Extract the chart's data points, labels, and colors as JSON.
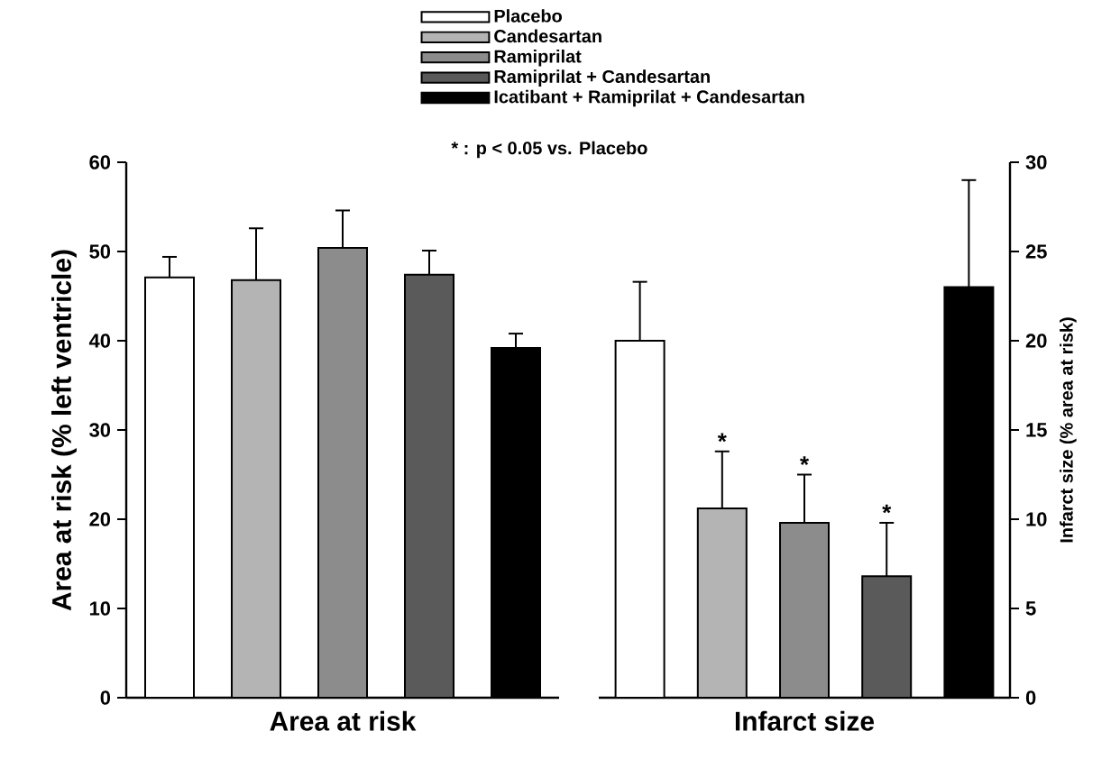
{
  "chart_data": [
    {
      "type": "bar",
      "categories": [
        null,
        null,
        null,
        null,
        null
      ],
      "xlabel": "Area at risk",
      "ylabel": "Area at risk (% left ventricle)",
      "ylim": [
        0,
        60
      ],
      "yticks": [
        0,
        10,
        20,
        30,
        40,
        50,
        60
      ],
      "legend": "top",
      "annotations": [
        "* : p < 0.05 vs. Placebo"
      ],
      "series": [
        {
          "name": "Placebo",
          "color": "#ffffff",
          "values": [
            47.1,
            null,
            null,
            null,
            null
          ],
          "errors": [
            2.3,
            null,
            null,
            null,
            null
          ]
        },
        {
          "name": "Candesartan",
          "color": "#b4b4b4",
          "values": [
            null,
            46.8,
            null,
            null,
            null
          ],
          "errors": [
            null,
            5.8,
            null,
            null,
            null
          ]
        },
        {
          "name": "Ramiprilat",
          "color": "#8c8c8c",
          "values": [
            null,
            null,
            50.4,
            null,
            null
          ],
          "errors": [
            null,
            null,
            4.2,
            null,
            null
          ]
        },
        {
          "name": "Ramiprilat + Candesartan",
          "color": "#5a5a5a",
          "values": [
            null,
            null,
            null,
            47.4,
            null
          ],
          "errors": [
            null,
            null,
            null,
            2.7,
            null
          ]
        },
        {
          "name": "Icatibant + Ramiprilat + Candesartan",
          "color": "#000000",
          "values": [
            null,
            null,
            null,
            null,
            39.2
          ],
          "errors": [
            null,
            null,
            null,
            null,
            1.6
          ]
        }
      ]
    },
    {
      "type": "bar",
      "categories": [
        null,
        null,
        null,
        null,
        null
      ],
      "xlabel": "Infarct size",
      "ylabel": "Infarct size (% area at risk)",
      "ylim": [
        0,
        30
      ],
      "yticks": [
        0,
        5,
        10,
        15,
        20,
        25,
        30
      ],
      "series": [
        {
          "color": "#ffffff",
          "values": [
            20.0,
            null,
            null,
            null,
            null
          ],
          "errors": [
            3.3,
            null,
            null,
            null,
            null
          ]
        },
        {
          "color": "#b4b4b4",
          "values": [
            null,
            10.6,
            null,
            null,
            null
          ],
          "errors": [
            null,
            3.2,
            null,
            null,
            null
          ],
          "value_labels": [
            null,
            "*",
            null,
            null,
            null
          ]
        },
        {
          "color": "#8c8c8c",
          "values": [
            null,
            null,
            9.8,
            null,
            null
          ],
          "errors": [
            null,
            null,
            2.7,
            null,
            null
          ],
          "value_labels": [
            null,
            null,
            "*",
            null,
            null
          ]
        },
        {
          "color": "#5a5a5a",
          "values": [
            null,
            null,
            null,
            6.8,
            null
          ],
          "errors": [
            null,
            null,
            null,
            3.0,
            null
          ],
          "value_labels": [
            null,
            null,
            null,
            "*",
            null
          ]
        },
        {
          "color": "#000000",
          "values": [
            null,
            null,
            null,
            null,
            23.0
          ],
          "errors": [
            null,
            null,
            null,
            null,
            6.0
          ]
        }
      ]
    }
  ]
}
